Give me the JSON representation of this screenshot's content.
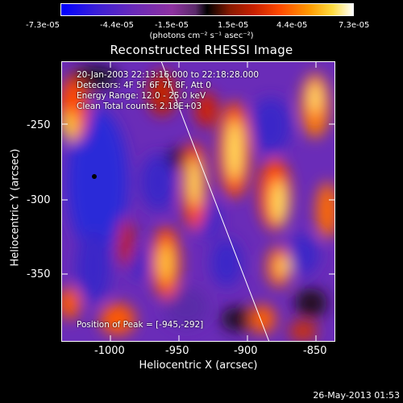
{
  "colorbar": {
    "ticks": [
      "-7.3e-05",
      "-4.4e-05",
      "-1.5e-05",
      "1.5e-05",
      "4.4e-05",
      "7.3e-05"
    ],
    "unit": "(photons cm⁻² s⁻¹ asec⁻²)"
  },
  "plot": {
    "title": "Reconstructed RHESSI Image",
    "annotations": {
      "time": "20-Jan-2003 22:13:16.000 to 22:18:28.000",
      "detectors": "Detectors: 4F 5F 6F 7F 8F, Att 0",
      "energy": "Energy Range: 12.0 - 25.0 keV",
      "clean": "Clean     Total counts: 2.18E+03",
      "peak": "Position of Peak = [-945,-292]"
    },
    "y_ticks": [
      "-250",
      "-300",
      "-350"
    ],
    "x_ticks": [
      "-1000",
      "-950",
      "-900",
      "-850"
    ],
    "xlabel": "Heliocentric X (arcsec)",
    "ylabel": "Heliocentric Y (arcsec)"
  },
  "footer": {
    "timestamp": "26-May-2013 01:53"
  }
}
